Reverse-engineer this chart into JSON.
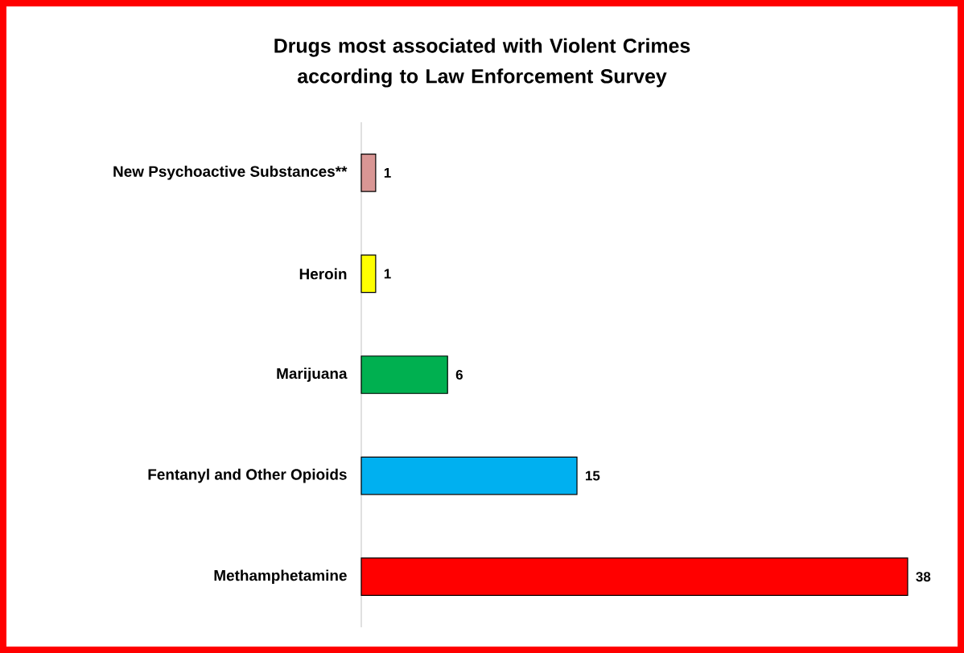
{
  "chart_data": {
    "type": "bar",
    "orientation": "horizontal",
    "title": "Drugs most associated with Violent Crimes according to Law Enforcement Survey",
    "categories": [
      "New Psychoactive Substances**",
      "Heroin",
      "Marijuana",
      "Fentanyl and Other Opioids",
      "Methamphetamine"
    ],
    "values": [
      1,
      1,
      6,
      15,
      38
    ],
    "colors": [
      "#d99694",
      "#ffff00",
      "#00b050",
      "#00b0f0",
      "#ff0000"
    ],
    "data_labels": true
  }
}
